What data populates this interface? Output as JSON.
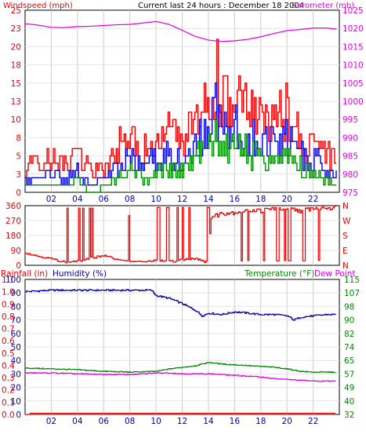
{
  "header": {
    "left_label": "Windspeed (mph)",
    "center_label": "Current last 24 hours : December 18 2004",
    "right_label": "Barometer (mb)"
  },
  "colors": {
    "red": "#e80000",
    "blue": "#0000cc",
    "green": "#008800",
    "magenta": "#e000e0",
    "navy": "#0000aa",
    "grid": "#cccccc",
    "frame": "#000000"
  },
  "hours": [
    "02",
    "04",
    "06",
    "08",
    "10",
    "12",
    "14",
    "16",
    "18",
    "20",
    "22"
  ],
  "chart_data": [
    {
      "type": "line",
      "title": "Windspeed (mph)",
      "x_range": [
        0,
        24
      ],
      "ylim": [
        0,
        25
      ],
      "y_ticks": [
        "0",
        "3",
        "5",
        "8",
        "10",
        "13",
        "15",
        "18",
        "20",
        "23",
        "25"
      ],
      "y2label": "Barometer (mb)",
      "y2lim": [
        975,
        1025
      ],
      "y2_ticks": [
        "975",
        "980",
        "985",
        "990",
        "995",
        "1000",
        "1005",
        "1010",
        "1015",
        "1020",
        "1025"
      ],
      "grid": true,
      "series": [
        {
          "name": "Barometer",
          "axis": "right",
          "color": "#e000e0",
          "x": [
            0,
            1,
            2,
            3,
            4,
            5,
            6,
            7,
            8,
            9,
            10,
            11,
            12,
            13,
            14,
            15,
            16,
            17,
            18,
            19,
            20,
            21,
            22,
            23,
            23.8
          ],
          "values": [
            1021.3,
            1020.9,
            1020.3,
            1020.2,
            1020.5,
            1020.6,
            1020.8,
            1021.0,
            1021.1,
            1021.5,
            1021.9,
            1021.1,
            1019.5,
            1017.8,
            1016.8,
            1016.4,
            1016.6,
            1017.0,
            1017.7,
            1018.6,
            1019.4,
            1019.7,
            1020.1,
            1020.1,
            1019.8
          ]
        },
        {
          "name": "Gust",
          "axis": "left",
          "color": "#e80000",
          "x": [
            0,
            1,
            2,
            3,
            4,
            5,
            6,
            7,
            8,
            9,
            10,
            11,
            12,
            13,
            14,
            14.5,
            15,
            16,
            17,
            18,
            19,
            20,
            21,
            22,
            23,
            23.8
          ],
          "values": [
            4,
            4,
            5,
            4,
            6,
            3,
            4,
            7,
            8,
            6,
            7,
            9,
            8,
            10,
            14,
            18,
            13,
            14,
            12,
            11,
            10,
            12,
            8,
            7,
            6,
            5
          ]
        },
        {
          "name": "Average",
          "axis": "left",
          "color": "#0000cc",
          "x": [
            0,
            1,
            2,
            3,
            4,
            5,
            6,
            7,
            8,
            9,
            10,
            11,
            12,
            13,
            14,
            14.5,
            15,
            16,
            17,
            18,
            19,
            20,
            21,
            22,
            23,
            23.8
          ],
          "values": [
            2,
            2,
            3,
            2,
            3,
            1,
            2,
            4,
            5,
            4,
            5,
            6,
            5,
            7,
            10,
            13,
            9,
            10,
            9,
            8,
            7,
            8,
            6,
            5,
            4,
            3
          ]
        },
        {
          "name": "Wind low",
          "axis": "left",
          "color": "#008800",
          "x": [
            0,
            1,
            2,
            3,
            4,
            5,
            6,
            7,
            8,
            9,
            10,
            11,
            12,
            13,
            14,
            14.5,
            15,
            16,
            17,
            18,
            19,
            20,
            21,
            22,
            23,
            23.8
          ],
          "values": [
            1,
            1,
            1,
            1,
            2,
            0,
            1,
            2,
            3,
            2,
            3,
            4,
            3,
            5,
            7,
            9,
            6,
            7,
            6,
            5,
            5,
            6,
            4,
            3,
            2,
            1
          ]
        }
      ]
    },
    {
      "type": "line",
      "title": "Wind direction",
      "x_range": [
        0,
        24
      ],
      "ylim": [
        0,
        360
      ],
      "y_ticks": [
        "0",
        "90",
        "180",
        "270",
        "360"
      ],
      "y2_ticks": [
        "N",
        "E",
        "S",
        "W",
        "N"
      ],
      "grid": true,
      "series": [
        {
          "name": "Direction",
          "color": "#e80000",
          "x": [
            0,
            1,
            2,
            3,
            4,
            5,
            6,
            7,
            8,
            9,
            10,
            11,
            12,
            13,
            13.9,
            14.2,
            15,
            16,
            17,
            18,
            19,
            20,
            21,
            22,
            23,
            23.8
          ],
          "values": [
            75,
            55,
            40,
            20,
            25,
            45,
            60,
            35,
            25,
            20,
            30,
            25,
            35,
            45,
            20,
            290,
            315,
            320,
            335,
            330,
            345,
            340,
            330,
            345,
            350,
            345
          ]
        }
      ]
    },
    {
      "type": "line",
      "title": "Rainfall (in)   Humidity (%)   Temperature (°F)   Dew Point",
      "x_range": [
        0,
        24
      ],
      "ylim": [
        0,
        100
      ],
      "y_ticks": [
        "0",
        "10",
        "20",
        "30",
        "40",
        "50",
        "60",
        "70",
        "80",
        "90",
        "100"
      ],
      "y_rain_ticks": [
        "0.0",
        "0.1",
        "0.2",
        "0.3",
        "0.4",
        "0.5",
        "0.6",
        "0.7",
        "0.8",
        "0.9",
        "1.0",
        "1.1"
      ],
      "y2_ticks": [
        "32",
        "40",
        "49",
        "57",
        "65",
        "74",
        "82",
        "90",
        "98",
        "107",
        "115"
      ],
      "y2lim": [
        32,
        115
      ],
      "grid": true,
      "series": [
        {
          "name": "Humidity",
          "axis": "left",
          "color": "#0000aa",
          "x": [
            0,
            2,
            4,
            6,
            8,
            9.6,
            10,
            11,
            12,
            13,
            13.5,
            14,
            15,
            16,
            17,
            18,
            19,
            20,
            20.5,
            21,
            22,
            23,
            23.8
          ],
          "values": [
            91,
            92,
            92,
            92,
            92,
            92,
            88,
            86,
            82,
            77,
            73,
            75,
            74,
            76,
            75,
            74,
            74,
            73,
            70,
            72,
            73,
            74,
            74
          ]
        },
        {
          "name": "Temperature",
          "axis": "right",
          "color": "#008800",
          "x": [
            0,
            2,
            4,
            6,
            8,
            10,
            11,
            12,
            13,
            14,
            15,
            16,
            17,
            18,
            19,
            20,
            21,
            22,
            23,
            23.8
          ],
          "values": [
            60.5,
            60,
            59.5,
            58.5,
            58,
            58.5,
            60,
            61,
            62,
            64,
            63,
            62.5,
            62,
            61.5,
            61,
            60,
            58.5,
            58,
            58,
            58
          ]
        },
        {
          "name": "Dew Point",
          "axis": "right",
          "color": "#e000e0",
          "x": [
            0,
            2,
            4,
            6,
            8,
            10,
            11,
            12,
            13,
            14,
            15,
            16,
            17,
            18,
            19,
            20,
            21,
            22,
            23,
            23.8
          ],
          "values": [
            57.5,
            57.5,
            57,
            56.5,
            56.5,
            57.5,
            57.5,
            57,
            57,
            57,
            56.5,
            56,
            55.5,
            55,
            54,
            53.5,
            53,
            52.5,
            52.5,
            52.5
          ]
        },
        {
          "name": "Rainfall",
          "axis": "rain",
          "color": "#e80000",
          "x": [
            0,
            0.3,
            0.35,
            23.8
          ],
          "values": [
            0.0,
            0.0,
            0.01,
            0.01
          ]
        }
      ]
    }
  ]
}
